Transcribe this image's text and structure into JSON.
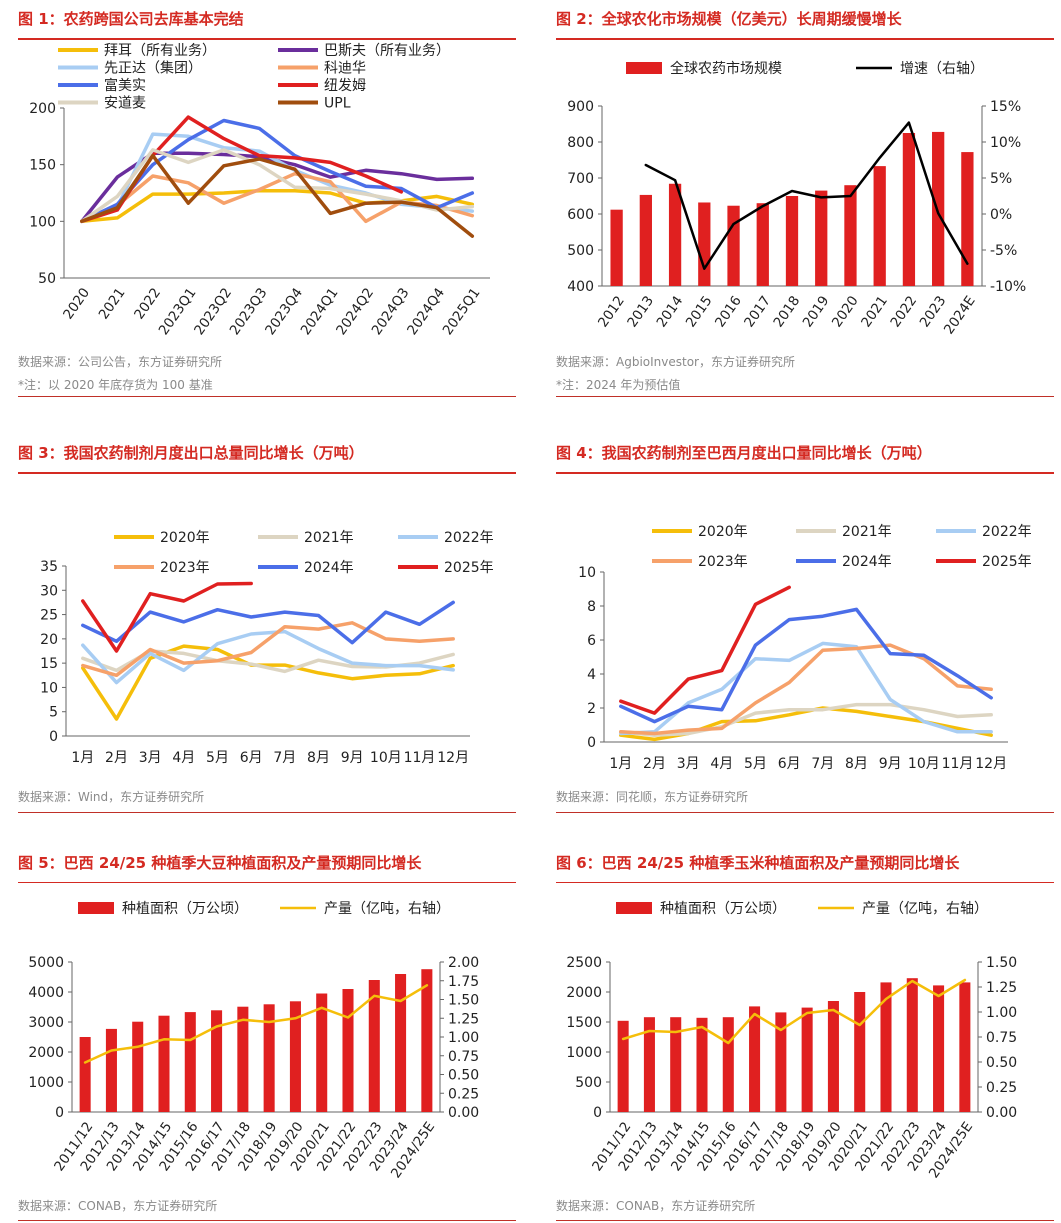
{
  "charts": [
    {
      "title": "图 1：农药跨国公司去库基本完结",
      "source": "数据来源：公司公告，东方证券研究所",
      "note": "*注：以 2020 年底存货为 100 基准",
      "chart_data": {
        "type": "line",
        "categories": [
          "2020",
          "2021",
          "2022",
          "2023Q1",
          "2023Q2",
          "2023Q3",
          "2023Q4",
          "2024Q1",
          "2024Q2",
          "2024Q3",
          "2024Q4",
          "2025Q1"
        ],
        "ylim": [
          50,
          200
        ],
        "yticks": [
          50,
          100,
          150,
          200
        ],
        "series": [
          {
            "name": "拜耳（所有业务）",
            "color": "#f5be0a",
            "values": [
              100,
              103,
              124,
              124,
              125,
              127,
              127,
              125,
              116,
              118,
              122,
              115
            ]
          },
          {
            "name": "巴斯夫（所有业务）",
            "color": "#6a2e9c",
            "values": [
              100,
              139,
              160,
              160,
              159,
              157,
              150,
              139,
              145,
              142,
              137,
              138
            ]
          },
          {
            "name": "先正达（集团）",
            "color": "#a8cdf3",
            "values": [
              100,
              113,
              177,
              175,
              165,
              162,
              145,
              132,
              125,
              115,
              112,
              109
            ]
          },
          {
            "name": "科迪华",
            "color": "#f6a16a",
            "values": [
              100,
              114,
              140,
              134,
              116,
              128,
              142,
              135,
              100,
              117,
              114,
              105
            ]
          },
          {
            "name": "富美实",
            "color": "#4b6ee8",
            "values": [
              100,
              115,
              150,
              172,
              189,
              182,
              158,
              144,
              131,
              129,
              112,
              125
            ]
          },
          {
            "name": "纽发姆",
            "color": "#e02020",
            "values": [
              100,
              110,
              158,
              192,
              173,
              158,
              156,
              152,
              140,
              126,
              null,
              null
            ]
          },
          {
            "name": "安道麦",
            "color": "#ddd5c2",
            "values": [
              100,
              122,
              163,
              152,
              163,
              150,
              130,
              129,
              124,
              118,
              110,
              113
            ]
          },
          {
            "name": "UPL",
            "color": "#a04d0e",
            "values": [
              100,
              112,
              158,
              116,
              149,
              155,
              146,
              107,
              116,
              117,
              112,
              87
            ]
          }
        ]
      }
    },
    {
      "title": "图 2：全球农化市场规模（亿美元）长周期缓慢增长",
      "source": "数据来源：AgbioInvestor，东方证券研究所",
      "note": "*注：2024 年为预估值",
      "chart_data": {
        "type": "bar",
        "categories": [
          "2012",
          "2013",
          "2014",
          "2015",
          "2016",
          "2017",
          "2018",
          "2019",
          "2020",
          "2021",
          "2022",
          "2023",
          "2024E"
        ],
        "ylim": [
          400,
          900
        ],
        "yticks": [
          400,
          500,
          600,
          700,
          800,
          900
        ],
        "y2lim": [
          -10,
          15
        ],
        "y2ticks": [
          "-10%",
          "-5%",
          "0%",
          "5%",
          "10%",
          "15%"
        ],
        "series": [
          {
            "name": "全球农药市场规模",
            "type": "bar",
            "color": "#e02020",
            "values": [
              612,
              653,
              684,
              632,
              623,
              630,
              650,
              665,
              680,
              733,
              825,
              828,
              772
            ]
          },
          {
            "name": "增速（右轴）",
            "type": "line",
            "axis": "right",
            "color": "#000000",
            "values": [
              null,
              6.8,
              4.7,
              -7.6,
              -1.4,
              1.1,
              3.2,
              2.3,
              2.5,
              7.8,
              12.7,
              0.1,
              -6.9
            ]
          }
        ]
      }
    },
    {
      "title": "图 3：我国农药制剂月度出口总量同比增长（万吨）",
      "source": "数据来源：Wind，东方证券研究所",
      "chart_data": {
        "type": "line",
        "categories": [
          "1月",
          "2月",
          "3月",
          "4月",
          "5月",
          "6月",
          "7月",
          "8月",
          "9月",
          "10月",
          "11月",
          "12月"
        ],
        "ylim": [
          0,
          35
        ],
        "yticks": [
          0,
          5,
          10,
          15,
          20,
          25,
          30,
          35
        ],
        "series": [
          {
            "name": "2020年",
            "color": "#f5be0a",
            "values": [
              14,
              3.5,
              16,
              18.5,
              17.8,
              14.6,
              14.6,
              13,
              11.8,
              12.5,
              12.8,
              14.5
            ]
          },
          {
            "name": "2021年",
            "color": "#ddd5c2",
            "values": [
              16,
              13.5,
              17.5,
              17,
              15.5,
              14.8,
              13.3,
              15.6,
              14.3,
              14.2,
              15,
              16.8
            ]
          },
          {
            "name": "2022年",
            "color": "#a8cdf3",
            "values": [
              18.7,
              11,
              17,
              13.5,
              19,
              21,
              21.5,
              18,
              15,
              14.5,
              14.5,
              13.6
            ]
          },
          {
            "name": "2023年",
            "color": "#f6a16a",
            "values": [
              14.5,
              12.5,
              17.8,
              15,
              15.5,
              17.2,
              22.5,
              22,
              23.3,
              20,
              19.5,
              20
            ]
          },
          {
            "name": "2024年",
            "color": "#4b6ee8",
            "values": [
              22.8,
              19.5,
              25.5,
              23.5,
              26,
              24.5,
              25.5,
              24.8,
              19.2,
              25.5,
              23,
              27.5
            ]
          },
          {
            "name": "2025年",
            "color": "#e02020",
            "values": [
              27.8,
              17.5,
              29.3,
              27.8,
              31.3,
              31.4,
              null,
              null,
              null,
              null,
              null,
              null
            ]
          }
        ]
      }
    },
    {
      "title": "图 4：我国农药制剂至巴西月度出口量同比增长（万吨）",
      "source": "数据来源：同花顺，东方证券研究所",
      "chart_data": {
        "type": "line",
        "categories": [
          "1月",
          "2月",
          "3月",
          "4月",
          "5月",
          "6月",
          "7月",
          "8月",
          "9月",
          "10月",
          "11月",
          "12月"
        ],
        "ylim": [
          0,
          10
        ],
        "yticks": [
          0,
          2,
          4,
          6,
          8,
          10
        ],
        "series": [
          {
            "name": "2020年",
            "color": "#f5be0a",
            "values": [
              0.4,
              0.15,
              0.5,
              1.2,
              1.25,
              1.6,
              2,
              1.8,
              1.5,
              1.2,
              0.8,
              0.4
            ]
          },
          {
            "name": "2021年",
            "color": "#ddd5c2",
            "values": [
              0.6,
              0.4,
              0.5,
              0.9,
              1.7,
              1.9,
              1.9,
              2.2,
              2.2,
              1.9,
              1.5,
              1.6
            ]
          },
          {
            "name": "2022年",
            "color": "#a8cdf3",
            "values": [
              0.5,
              0.6,
              2.3,
              3.1,
              4.9,
              4.8,
              5.8,
              5.6,
              2.5,
              1.2,
              0.6,
              0.6
            ]
          },
          {
            "name": "2023年",
            "color": "#f6a16a",
            "values": [
              0.6,
              0.5,
              0.7,
              0.8,
              2.3,
              3.5,
              5.4,
              5.5,
              5.7,
              4.9,
              3.3,
              3.1
            ]
          },
          {
            "name": "2024年",
            "color": "#4b6ee8",
            "values": [
              2.1,
              1.2,
              2.1,
              1.9,
              5.7,
              7.2,
              7.4,
              7.8,
              5.2,
              5.1,
              3.9,
              2.6
            ]
          },
          {
            "name": "2025年",
            "color": "#e02020",
            "values": [
              2.4,
              1.7,
              3.7,
              4.2,
              8.1,
              9.1,
              null,
              null,
              null,
              null,
              null,
              null
            ]
          }
        ]
      }
    },
    {
      "title": "图 5：巴西 24/25 种植季大豆种植面积及产量预期同比增长",
      "source": "数据来源：CONAB，东方证券研究所",
      "chart_data": {
        "type": "bar",
        "categories": [
          "2011/12",
          "2012/13",
          "2013/14",
          "2014/15",
          "2015/16",
          "2016/17",
          "2017/18",
          "2018/19",
          "2019/20",
          "2020/21",
          "2021/22",
          "2022/23",
          "2023/24",
          "2024/25E"
        ],
        "ylim": [
          0,
          5000
        ],
        "yticks": [
          0,
          1000,
          2000,
          3000,
          4000,
          5000
        ],
        "y2lim": [
          0,
          2
        ],
        "y2ticks": [
          "0.00",
          "0.25",
          "0.50",
          "0.75",
          "1.00",
          "1.25",
          "1.50",
          "1.75",
          "2.00"
        ],
        "series": [
          {
            "name": "种植面积（万公顷）",
            "type": "bar",
            "color": "#e02020",
            "values": [
              2500,
              2770,
              3010,
              3210,
              3330,
              3390,
              3510,
              3590,
              3690,
              3950,
              4100,
              4400,
              4600,
              4760
            ]
          },
          {
            "name": "产量（亿吨，右轴）",
            "type": "line",
            "axis": "right",
            "color": "#f5be0a",
            "values": [
              0.66,
              0.82,
              0.87,
              0.97,
              0.96,
              1.14,
              1.23,
              1.2,
              1.25,
              1.39,
              1.26,
              1.55,
              1.48,
              1.69
            ]
          }
        ]
      }
    },
    {
      "title": "图 6：巴西 24/25 种植季玉米种植面积及产量预期同比增长",
      "source": "数据来源：CONAB，东方证券研究所",
      "chart_data": {
        "type": "bar",
        "categories": [
          "2011/12",
          "2012/13",
          "2013/14",
          "2014/15",
          "2015/16",
          "2016/17",
          "2017/18",
          "2018/19",
          "2019/20",
          "2020/21",
          "2021/22",
          "2022/23",
          "2023/24",
          "2024/25E"
        ],
        "ylim": [
          0,
          2500
        ],
        "yticks": [
          0,
          500,
          1000,
          1500,
          2000,
          2500
        ],
        "y2lim": [
          0,
          1.5
        ],
        "y2ticks": [
          "0.00",
          "0.25",
          "0.50",
          "0.75",
          "1.00",
          "1.25",
          "1.50"
        ],
        "series": [
          {
            "name": "种植面积（万公顷）",
            "type": "bar",
            "color": "#e02020",
            "values": [
              1520,
              1580,
              1580,
              1570,
              1580,
              1760,
              1660,
              1740,
              1850,
              2000,
              2160,
              2230,
              2110,
              2160
            ]
          },
          {
            "name": "产量（亿吨，右轴）",
            "type": "line",
            "axis": "right",
            "color": "#f5be0a",
            "values": [
              0.73,
              0.81,
              0.8,
              0.85,
              0.69,
              0.98,
              0.82,
              0.99,
              1.02,
              0.87,
              1.13,
              1.31,
              1.16,
              1.32
            ]
          }
        ]
      }
    }
  ]
}
